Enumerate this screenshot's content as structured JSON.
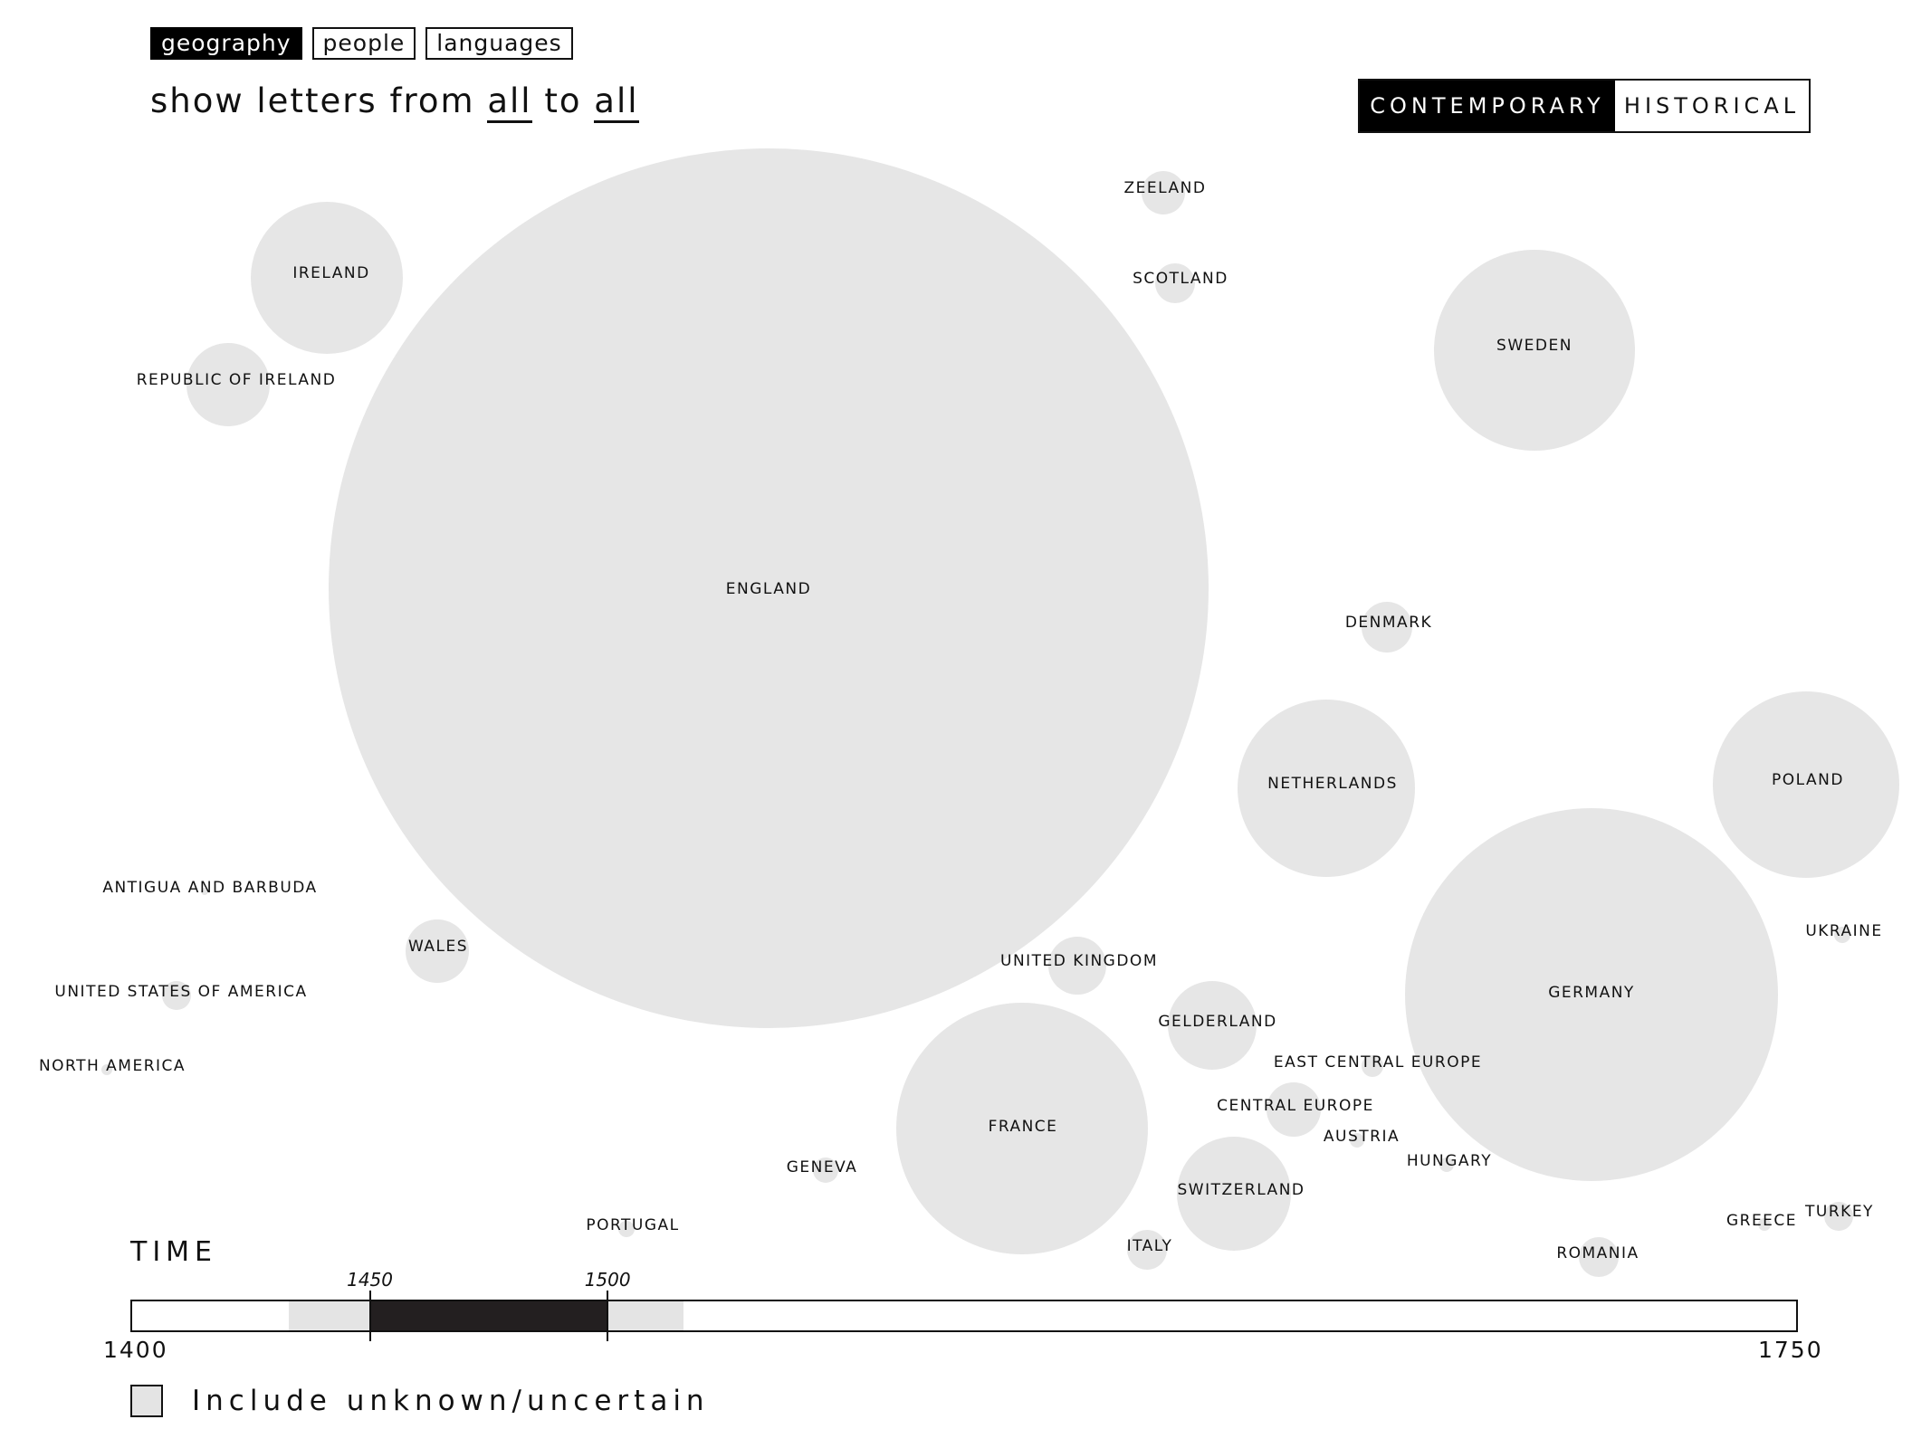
{
  "tabs": [
    {
      "label": "geography",
      "active": true
    },
    {
      "label": "people",
      "active": false
    },
    {
      "label": "languages",
      "active": false
    }
  ],
  "filter": {
    "prefix": "show letters from",
    "from_value": "all",
    "middle": "to",
    "to_value": "all"
  },
  "mode": {
    "options": [
      "CONTEMPORARY",
      "HISTORICAL"
    ],
    "selected": "CONTEMPORARY"
  },
  "colors": {
    "bubble": "#e6e6e6",
    "selection": "#231f20",
    "soft_range": "#e4e4e4"
  },
  "regions": [
    {
      "name": "ENGLAND"
    },
    {
      "name": "GERMANY"
    },
    {
      "name": "FRANCE"
    },
    {
      "name": "SWEDEN"
    },
    {
      "name": "POLAND"
    },
    {
      "name": "IRELAND"
    },
    {
      "name": "NETHERLANDS"
    },
    {
      "name": "SWITZERLAND"
    },
    {
      "name": "REPUBLIC OF IRELAND"
    },
    {
      "name": "GELDERLAND"
    },
    {
      "name": "WALES"
    },
    {
      "name": "UNITED KINGDOM"
    },
    {
      "name": "CENTRAL EUROPE"
    },
    {
      "name": "DENMARK"
    },
    {
      "name": "ZEELAND"
    },
    {
      "name": "SCOTLAND"
    },
    {
      "name": "ITALY"
    },
    {
      "name": "ROMANIA"
    },
    {
      "name": "GENEVA"
    },
    {
      "name": "TURKEY"
    },
    {
      "name": "UNITED STATES OF AMERICA"
    },
    {
      "name": "EAST CENTRAL EUROPE"
    },
    {
      "name": "PORTUGAL"
    },
    {
      "name": "UKRAINE"
    },
    {
      "name": "AUSTRIA"
    },
    {
      "name": "HUNGARY"
    },
    {
      "name": "GREECE"
    },
    {
      "name": "NORTH AMERICA"
    },
    {
      "name": "ANTIGUA AND BARBUDA"
    }
  ],
  "time": {
    "title": "TIME",
    "min": 1400,
    "max": 1750,
    "min_label": "1400",
    "max_label": "1750",
    "selected_start": 1450,
    "selected_end": 1500,
    "selected_start_label": "1450",
    "selected_end_label": "1500",
    "context_start": 1433,
    "context_end": 1516
  },
  "unknown": {
    "label": "Include unknown/uncertain",
    "checked": false
  }
}
